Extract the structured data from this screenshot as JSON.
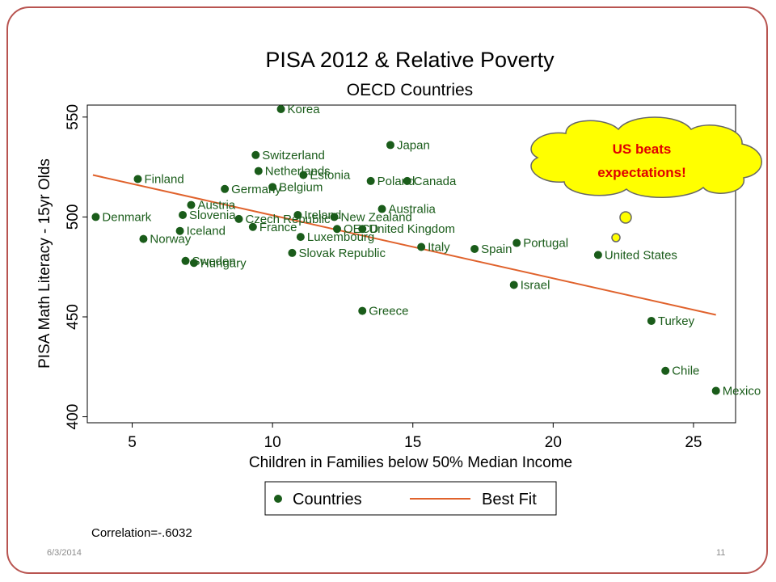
{
  "footer": {
    "date": "6/3/2014",
    "page": "11"
  },
  "correlation_text": "Correlation=-.6032",
  "callout": {
    "line1": "US beats",
    "line2": "expectations!",
    "fill": "#ffff00",
    "text_color": "#e00000"
  },
  "colors": {
    "point": "#1a5c1a",
    "fit": "#e0622c",
    "frame": "#b85450"
  },
  "chart_data": {
    "type": "scatter",
    "title": "PISA 2012 & Relative Poverty",
    "subtitle": "OECD Countries",
    "xlabel": "Children in Families below 50% Median Income",
    "ylabel": "PISA Math Literacy - 15yr Olds",
    "xlim": [
      3.4,
      26.5
    ],
    "ylim": [
      397,
      556
    ],
    "xticks": [
      5,
      10,
      15,
      20,
      25
    ],
    "yticks": [
      400,
      450,
      500,
      550
    ],
    "legend": {
      "position": "bottom",
      "entries": [
        "Countries",
        "Best Fit"
      ]
    },
    "fit_line": {
      "x": [
        3.6,
        25.8
      ],
      "y": [
        521,
        451
      ]
    },
    "series": [
      {
        "name": "Countries",
        "points": [
          {
            "label": "Korea",
            "x": 10.3,
            "y": 554
          },
          {
            "label": "Japan",
            "x": 14.2,
            "y": 536
          },
          {
            "label": "Switzerland",
            "x": 9.4,
            "y": 531
          },
          {
            "label": "Netherlands",
            "x": 9.5,
            "y": 523
          },
          {
            "label": "Estonia",
            "x": 11.1,
            "y": 521
          },
          {
            "label": "Finland",
            "x": 5.2,
            "y": 519
          },
          {
            "label": "Poland",
            "x": 13.5,
            "y": 518
          },
          {
            "label": "Canada",
            "x": 14.8,
            "y": 518
          },
          {
            "label": "Belgium",
            "x": 10.0,
            "y": 515
          },
          {
            "label": "Germany",
            "x": 8.3,
            "y": 514
          },
          {
            "label": "Austria",
            "x": 7.1,
            "y": 506
          },
          {
            "label": "Australia",
            "x": 13.9,
            "y": 504
          },
          {
            "label": "Slovenia",
            "x": 6.8,
            "y": 501
          },
          {
            "label": "Ireland",
            "x": 10.9,
            "y": 501
          },
          {
            "label": "Denmark",
            "x": 3.7,
            "y": 500
          },
          {
            "label": "New Zealand",
            "x": 12.2,
            "y": 500
          },
          {
            "label": "Czech Republic",
            "x": 8.8,
            "y": 499
          },
          {
            "label": "France",
            "x": 9.3,
            "y": 495
          },
          {
            "label": "OECD",
            "x": 12.3,
            "y": 494
          },
          {
            "label": "United Kingdom",
            "x": 13.2,
            "y": 494
          },
          {
            "label": "Iceland",
            "x": 6.7,
            "y": 493
          },
          {
            "label": "Luxembourg",
            "x": 11.0,
            "y": 490
          },
          {
            "label": "Norway",
            "x": 5.4,
            "y": 489
          },
          {
            "label": "Portugal",
            "x": 18.7,
            "y": 487
          },
          {
            "label": "Italy",
            "x": 15.3,
            "y": 485
          },
          {
            "label": "Spain",
            "x": 17.2,
            "y": 484
          },
          {
            "label": "Slovak Republic",
            "x": 10.7,
            "y": 482
          },
          {
            "label": "United States",
            "x": 21.6,
            "y": 481
          },
          {
            "label": "Sweden",
            "x": 6.9,
            "y": 478
          },
          {
            "label": "Hungary",
            "x": 7.2,
            "y": 477
          },
          {
            "label": "Israel",
            "x": 18.6,
            "y": 466
          },
          {
            "label": "Greece",
            "x": 13.2,
            "y": 453
          },
          {
            "label": "Turkey",
            "x": 23.5,
            "y": 448
          },
          {
            "label": "Chile",
            "x": 24.0,
            "y": 423
          },
          {
            "label": "Mexico",
            "x": 25.8,
            "y": 413
          }
        ]
      }
    ]
  }
}
